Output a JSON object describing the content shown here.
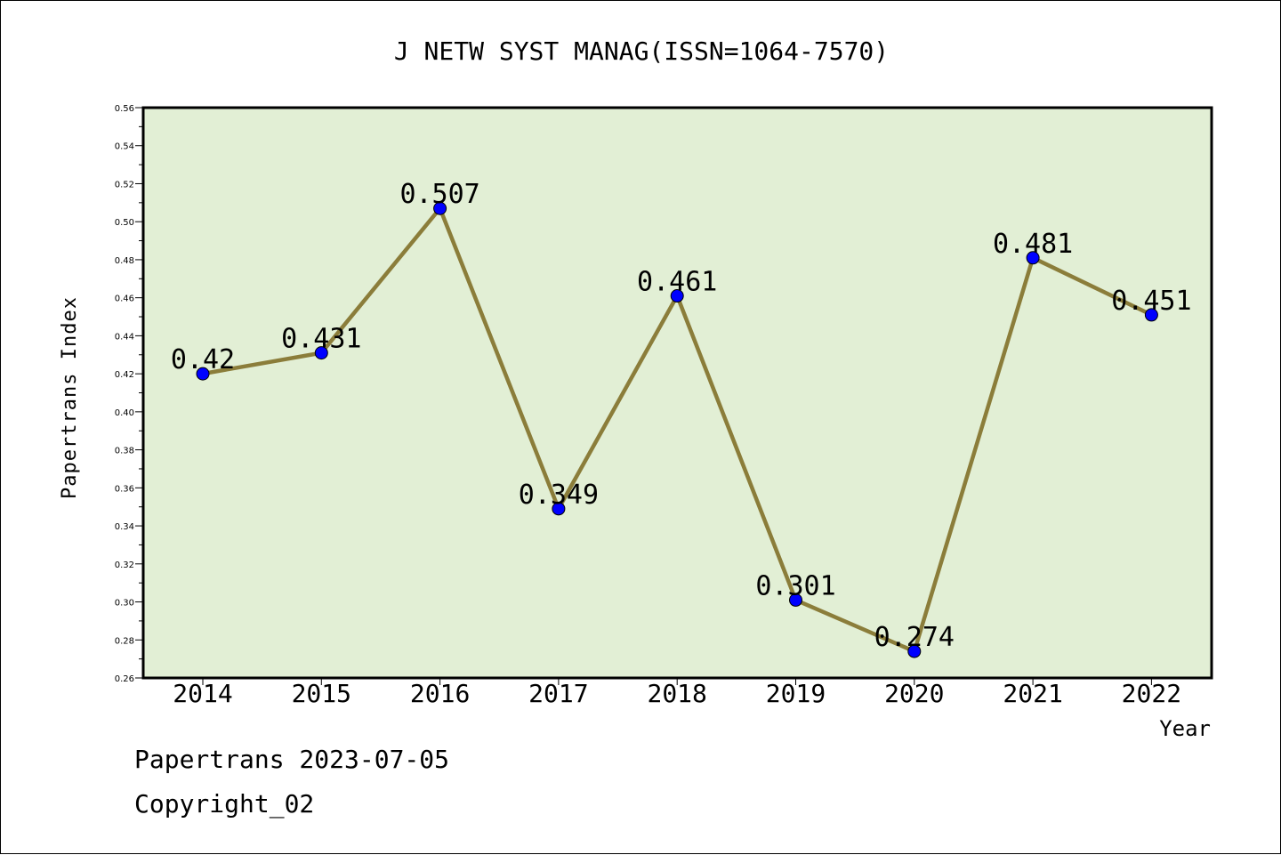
{
  "chart_data": {
    "type": "line",
    "title": "J NETW SYST MANAG(ISSN=1064-7570)",
    "xlabel": "Year",
    "ylabel": "Papertrans Index",
    "categories": [
      "2014",
      "2015",
      "2016",
      "2017",
      "2018",
      "2019",
      "2020",
      "2021",
      "2022"
    ],
    "series": [
      {
        "values": [
          0.42,
          0.431,
          0.507,
          0.349,
          0.461,
          0.301,
          0.274,
          0.481,
          0.451
        ]
      }
    ],
    "data_labels": [
      "0.42",
      "0.431",
      "0.507",
      "0.349",
      "0.461",
      "0.301",
      "0.274",
      "0.481",
      "0.451"
    ],
    "ylim": [
      0.26,
      0.56
    ],
    "yticks": [
      "0.26",
      "0.28",
      "0.30",
      "0.32",
      "0.34",
      "0.36",
      "0.38",
      "0.40",
      "0.42",
      "0.44",
      "0.46",
      "0.48",
      "0.50",
      "0.52",
      "0.54",
      "0.56"
    ],
    "grid": false,
    "colors": {
      "plot_background": "#e2efd5",
      "line": "#8b7d3a",
      "marker": "#0000ff"
    }
  },
  "footer": {
    "line1": "Papertrans 2023-07-05",
    "line2": "Copyright_02"
  }
}
